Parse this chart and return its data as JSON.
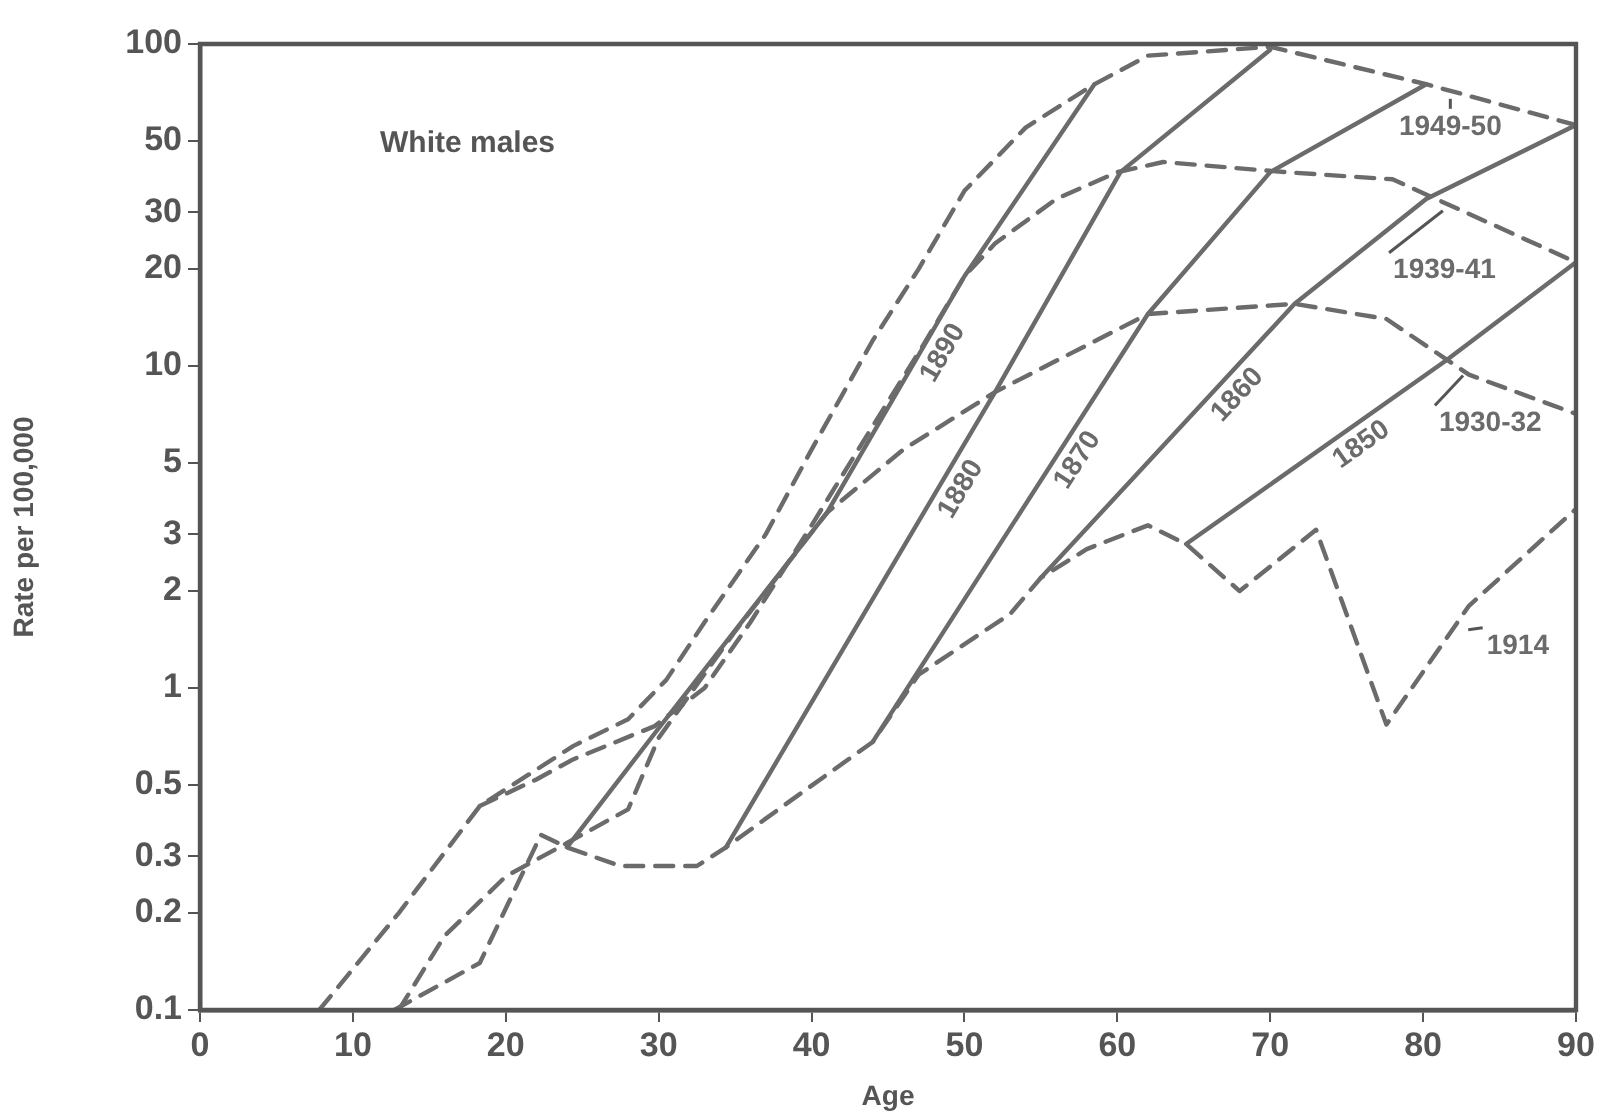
{
  "chart_data": {
    "type": "line",
    "xlabel": "Age",
    "ylabel": "Rate per 100,000",
    "log": "y",
    "grid": false,
    "legend": false,
    "marker": "none",
    "xlim": [
      0,
      90
    ],
    "xticks": [
      0,
      10,
      20,
      30,
      40,
      50,
      60,
      70,
      80,
      90
    ],
    "ylim": [
      0.1,
      100
    ],
    "yticks": [
      0.1,
      0.2,
      0.3,
      0.5,
      1,
      2,
      3,
      5,
      10,
      20,
      30,
      50,
      100
    ],
    "annotations": [
      "White males"
    ],
    "series": [
      {
        "name": "1949-50",
        "color": "#6b6b6b",
        "line_style": "dashed",
        "x": [
          7.8,
          13,
          18.3,
          24.4,
          28,
          30.5,
          33,
          37,
          40,
          44,
          47,
          50,
          54,
          58.5,
          62,
          70,
          80.2,
          90
        ],
        "values": [
          0.1,
          0.2,
          0.43,
          0.66,
          0.8,
          1.06,
          1.6,
          3,
          5.5,
          12,
          20,
          35,
          55,
          75,
          92,
          98,
          75,
          56
        ]
      },
      {
        "name": "1939-41",
        "color": "#6b6b6b",
        "line_style": "dashed",
        "x": [
          18.3,
          22,
          24.4,
          29.7,
          33,
          36,
          40,
          44,
          47,
          50,
          52,
          56,
          60,
          63,
          71,
          78,
          90
        ],
        "values": [
          0.43,
          0.52,
          0.6,
          0.76,
          1,
          1.6,
          3.2,
          6.5,
          11,
          19,
          24,
          33,
          40,
          43,
          40,
          38,
          21
        ]
      },
      {
        "name": "1930-32",
        "color": "#6b6b6b",
        "line_style": "dashed",
        "x": [
          13,
          16,
          20,
          24,
          28,
          30,
          35,
          41,
          46,
          52,
          62,
          71.6,
          77.6,
          83,
          90
        ],
        "values": [
          0.1,
          0.17,
          0.26,
          0.33,
          0.42,
          0.7,
          1.5,
          3.5,
          5.5,
          8.3,
          14.5,
          15.6,
          14,
          9.4,
          7.1
        ]
      },
      {
        "name": "1914",
        "color": "#6b6b6b",
        "line_style": "dashed",
        "x": [
          12.7,
          18.3,
          22.3,
          24,
          27.5,
          32.5,
          34.4,
          39,
          44,
          47,
          53,
          55,
          58,
          62,
          64.5,
          68,
          73,
          77.6,
          83,
          90
        ],
        "values": [
          0.1,
          0.14,
          0.35,
          0.32,
          0.28,
          0.28,
          0.32,
          0.46,
          0.68,
          1.1,
          1.7,
          2.2,
          2.7,
          3.2,
          2.8,
          2,
          3.1,
          0.77,
          1.8,
          3.6
        ]
      },
      {
        "name": "1890",
        "color": "#6b6b6b",
        "line_style": "solid",
        "x": [
          24,
          30,
          41,
          50,
          58.5
        ],
        "values": [
          0.32,
          0.75,
          3.5,
          19,
          75
        ]
      },
      {
        "name": "1880",
        "color": "#6b6b6b",
        "line_style": "solid",
        "x": [
          34.4,
          52,
          60.2,
          70
        ],
        "values": [
          0.32,
          8.3,
          40,
          96
        ]
      },
      {
        "name": "1870",
        "color": "#6b6b6b",
        "line_style": "solid",
        "x": [
          44,
          62,
          70,
          80.2
        ],
        "values": [
          0.68,
          14.5,
          40,
          75
        ]
      },
      {
        "name": "1860",
        "color": "#6b6b6b",
        "line_style": "solid",
        "x": [
          55,
          71.6,
          80.2,
          90
        ],
        "values": [
          2.2,
          15.6,
          33,
          56
        ]
      },
      {
        "name": "1850",
        "color": "#6b6b6b",
        "line_style": "solid",
        "x": [
          64.5,
          81.5,
          90
        ],
        "values": [
          2.8,
          10.4,
          21
        ]
      }
    ]
  }
}
